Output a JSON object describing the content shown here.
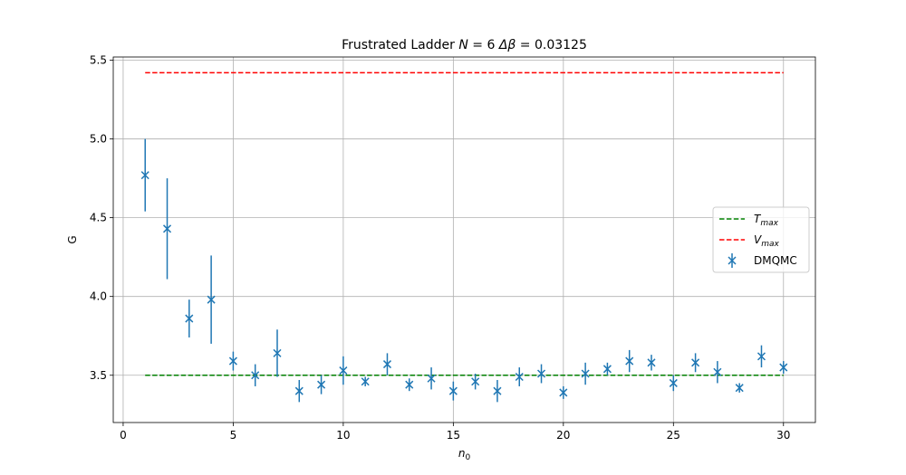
{
  "chart_data": {
    "type": "scatter",
    "title": "Frustrated Ladder N = 6 Δβ = 0.03125",
    "title_parts": {
      "prefix": "Frustrated Ladder ",
      "n_symbol": "N",
      "n_value": " = 6 ",
      "delta": "Δβ",
      "delta_value": " = 0.03125"
    },
    "xlabel": {
      "base": "n",
      "sub": "0"
    },
    "ylabel": "G",
    "xlim": [
      -0.45,
      31.45
    ],
    "ylim": [
      3.2,
      5.52
    ],
    "xticks": [
      0,
      5,
      10,
      15,
      20,
      25,
      30
    ],
    "xtick_labels": [
      "0",
      "5",
      "10",
      "15",
      "20",
      "25",
      "30"
    ],
    "yticks": [
      3.5,
      4.0,
      4.5,
      5.0,
      5.5
    ],
    "ytick_labels": [
      "3.5",
      "4.0",
      "4.5",
      "5.0",
      "5.5"
    ],
    "grid": true,
    "legend_position": "center-right",
    "series": [
      {
        "name": "T_max",
        "kind": "hline",
        "label_base": "T",
        "label_sub": "max",
        "y": 3.5,
        "x_range": [
          1,
          30
        ],
        "color": "#008000",
        "dashed": true
      },
      {
        "name": "V_max",
        "kind": "hline",
        "label_base": "V",
        "label_sub": "max",
        "y": 5.42,
        "x_range": [
          1,
          30
        ],
        "color": "#ff0000",
        "dashed": true
      },
      {
        "name": "DMQMC",
        "kind": "errorbar",
        "color": "#1f77b4",
        "marker": "x",
        "x": [
          1,
          2,
          3,
          4,
          5,
          6,
          7,
          8,
          9,
          10,
          11,
          12,
          13,
          14,
          15,
          16,
          17,
          18,
          19,
          20,
          21,
          22,
          23,
          24,
          25,
          26,
          27,
          28,
          29,
          30
        ],
        "y": [
          4.77,
          4.43,
          3.86,
          3.98,
          3.59,
          3.5,
          3.64,
          3.4,
          3.44,
          3.53,
          3.46,
          3.57,
          3.44,
          3.48,
          3.4,
          3.46,
          3.4,
          3.49,
          3.51,
          3.39,
          3.51,
          3.54,
          3.59,
          3.58,
          3.45,
          3.58,
          3.52,
          3.42,
          3.62,
          3.55
        ],
        "yerr": [
          0.23,
          0.32,
          0.12,
          0.28,
          0.06,
          0.07,
          0.15,
          0.07,
          0.06,
          0.09,
          0.03,
          0.07,
          0.04,
          0.07,
          0.06,
          0.05,
          0.07,
          0.06,
          0.06,
          0.04,
          0.07,
          0.04,
          0.07,
          0.05,
          0.05,
          0.06,
          0.07,
          0.03,
          0.07,
          0.04
        ]
      }
    ]
  }
}
